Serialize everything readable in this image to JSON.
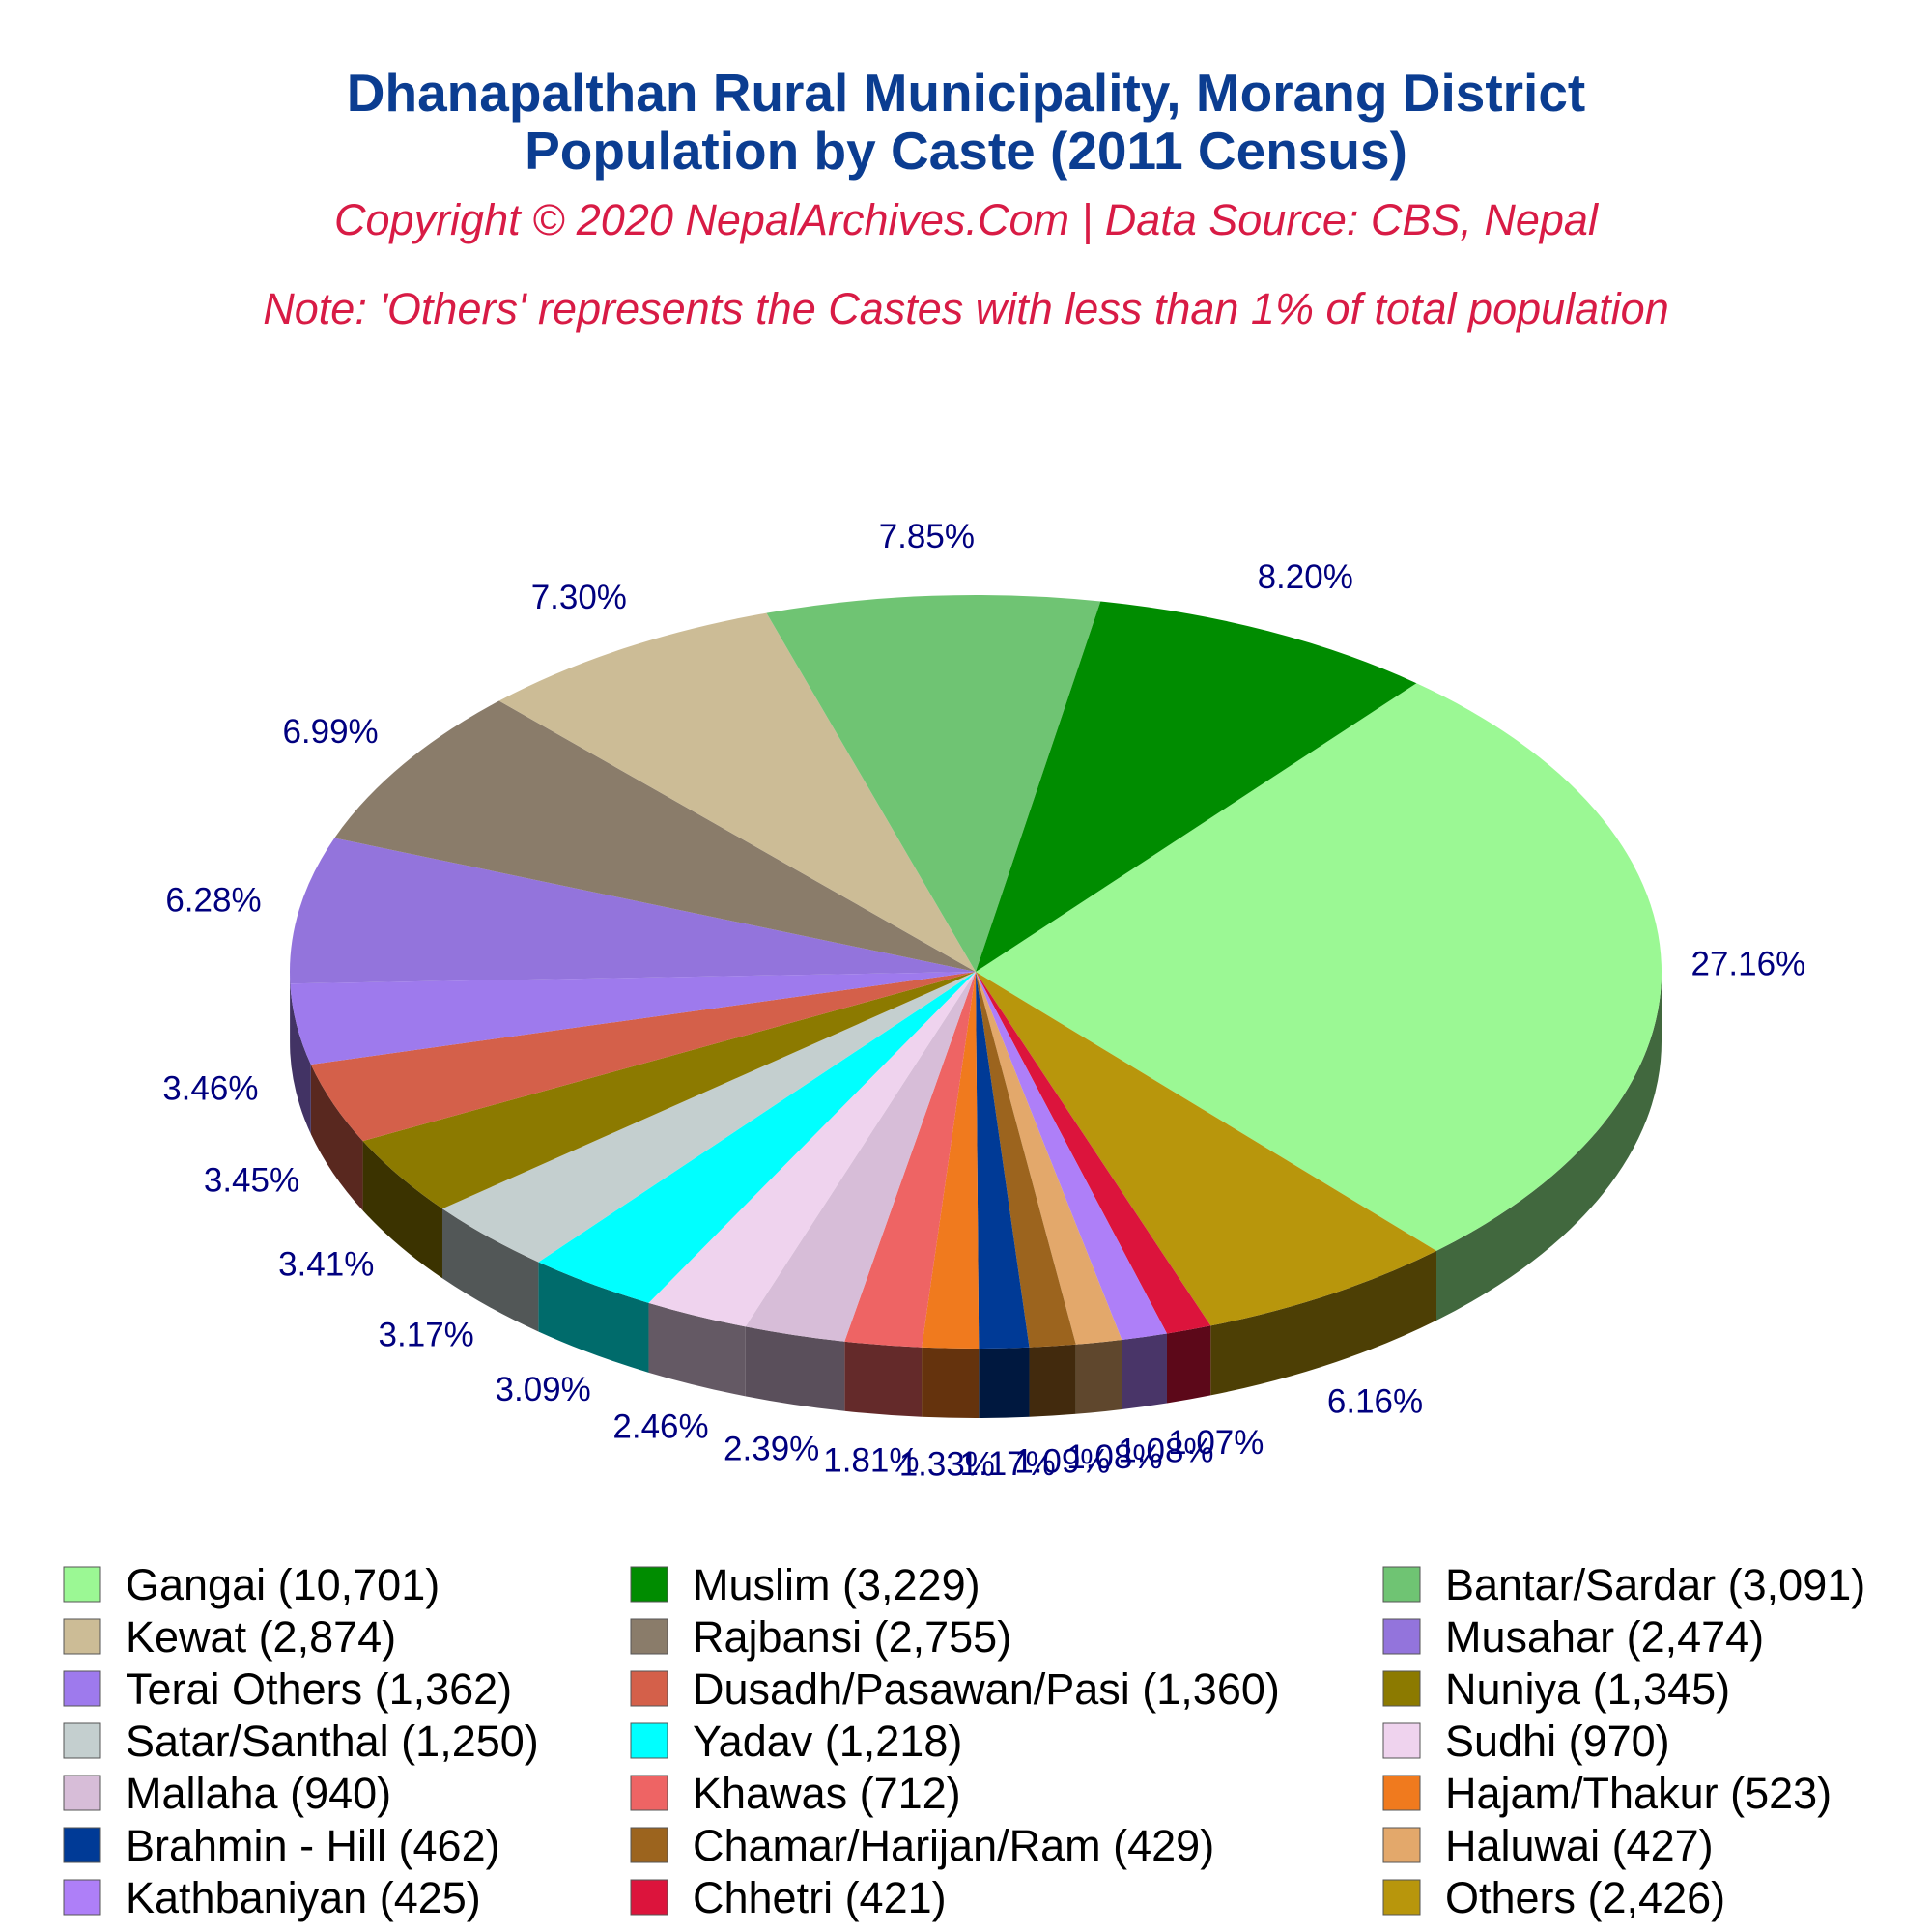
{
  "chart_data": {
    "type": "pie",
    "title": "Dhanapalthan Rural Municipality, Morang District",
    "subtitle": "Population by Caste (2011 Census)",
    "copyright": "Copyright © 2020 NepalArchives.Com | Data Source: CBS, Nepal",
    "note": "Note: 'Others' represents the Castes with less than 1% of total population",
    "slices": [
      {
        "label": "Gangai (10,701)",
        "value": 10701,
        "percent_label": "27.16%",
        "color": "#9BF894"
      },
      {
        "label": "Others (2,426)",
        "value": 2426,
        "percent_label": "6.16%",
        "color": "#B8960C"
      },
      {
        "label": "Chhetri (421)",
        "value": 421,
        "percent_label": "1.07%",
        "color": "#DC143C"
      },
      {
        "label": "Kathbaniyan (425)",
        "value": 425,
        "percent_label": "1.08%",
        "color": "#AE7FF8"
      },
      {
        "label": "Haluwai (427)",
        "value": 427,
        "percent_label": "1.08%",
        "color": "#E3A86B"
      },
      {
        "label": "Chamar/Harijan/Ram (429)",
        "value": 429,
        "percent_label": "1.09%",
        "color": "#9C641E"
      },
      {
        "label": "Brahmin - Hill (462)",
        "value": 462,
        "percent_label": "1.17%",
        "color": "#003A96"
      },
      {
        "label": "Hajam/Thakur (523)",
        "value": 523,
        "percent_label": "1.33%",
        "color": "#F07A1E"
      },
      {
        "label": "Khawas (712)",
        "value": 712,
        "percent_label": "1.81%",
        "color": "#EE6464"
      },
      {
        "label": "Mallaha (940)",
        "value": 940,
        "percent_label": "2.39%",
        "color": "#D7BDD8"
      },
      {
        "label": "Sudhi (970)",
        "value": 970,
        "percent_label": "2.46%",
        "color": "#EFD3EE"
      },
      {
        "label": "Yadav (1,218)",
        "value": 1218,
        "percent_label": "3.09%",
        "color": "#00FFFF"
      },
      {
        "label": "Satar/Santhal (1,250)",
        "value": 1250,
        "percent_label": "3.17%",
        "color": "#C4CFCF"
      },
      {
        "label": "Nuniya (1,345)",
        "value": 1345,
        "percent_label": "3.41%",
        "color": "#8C7A00"
      },
      {
        "label": "Dusadh/Pasawan/Pasi (1,360)",
        "value": 1360,
        "percent_label": "3.45%",
        "color": "#D4604A"
      },
      {
        "label": "Terai Others (1,362)",
        "value": 1362,
        "percent_label": "3.46%",
        "color": "#9E7AED"
      },
      {
        "label": "Musahar (2,474)",
        "value": 2474,
        "percent_label": "6.28%",
        "color": "#9374DC"
      },
      {
        "label": "Rajbansi (2,755)",
        "value": 2755,
        "percent_label": "6.99%",
        "color": "#8A7C6A"
      },
      {
        "label": "Kewat (2,874)",
        "value": 2874,
        "percent_label": "7.30%",
        "color": "#CCBC96"
      },
      {
        "label": "Bantar/Sardar (3,091)",
        "value": 3091,
        "percent_label": "7.85%",
        "color": "#6FC473"
      },
      {
        "label": "Muslim (3,229)",
        "value": 3229,
        "percent_label": "8.20%",
        "color": "#008C00"
      }
    ],
    "legend": [
      [
        "Gangai (10,701)",
        "Muslim (3,229)",
        "Bantar/Sardar (3,091)"
      ],
      [
        "Kewat (2,874)",
        "Rajbansi (2,755)",
        "Musahar (2,474)"
      ],
      [
        "Terai Others (1,362)",
        "Dusadh/Pasawan/Pasi (1,360)",
        "Nuniya (1,345)"
      ],
      [
        "Satar/Santhal (1,250)",
        "Yadav (1,218)",
        "Sudhi (970)"
      ],
      [
        "Mallaha (940)",
        "Khawas (712)",
        "Hajam/Thakur (523)"
      ],
      [
        "Brahmin - Hill (462)",
        "Chamar/Harijan/Ram (429)",
        "Haluwai (427)"
      ],
      [
        "Kathbaniyan (425)",
        "Chhetri (421)",
        "Others (2,426)"
      ]
    ]
  }
}
